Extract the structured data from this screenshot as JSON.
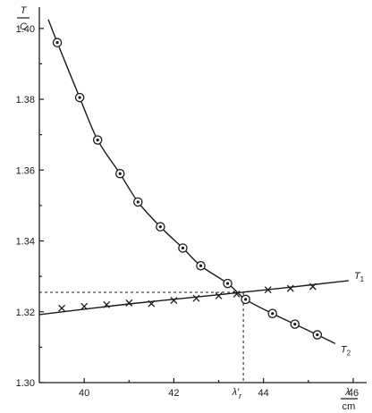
{
  "chart_data": {
    "type": "line",
    "xlabel": "λ'",
    "xunit": "cm",
    "ylabel": "T",
    "yunit": "C",
    "xlim": [
      39,
      46.3
    ],
    "ylim": [
      1.3,
      1.405
    ],
    "xticks": [
      "40",
      "42",
      "44",
      "46"
    ],
    "yticks": [
      "1.30",
      "1.32",
      "1.34",
      "1.36",
      "1.38",
      "1.40"
    ],
    "series": [
      {
        "name": "T",
        "name_sub": "1",
        "marker": "x",
        "points": [
          [
            39.5,
            1.321
          ],
          [
            40.0,
            1.3215
          ],
          [
            40.5,
            1.322
          ],
          [
            41.0,
            1.3225
          ],
          [
            41.5,
            1.3223
          ],
          [
            42.0,
            1.3232
          ],
          [
            42.5,
            1.3238
          ],
          [
            43.0,
            1.3245
          ],
          [
            43.4,
            1.325
          ],
          [
            44.1,
            1.3262
          ],
          [
            44.6,
            1.3266
          ],
          [
            45.1,
            1.3271
          ]
        ],
        "curve": [
          [
            39.0,
            1.3192
          ],
          [
            41.0,
            1.3222
          ],
          [
            43.0,
            1.3248
          ],
          [
            44.5,
            1.3268
          ],
          [
            45.9,
            1.3288
          ]
        ]
      },
      {
        "name": "T",
        "name_sub": "2",
        "marker": "circle-dot",
        "points": [
          [
            39.4,
            1.396
          ],
          [
            39.9,
            1.3805
          ],
          [
            40.3,
            1.3685
          ],
          [
            40.8,
            1.359
          ],
          [
            41.2,
            1.351
          ],
          [
            41.7,
            1.344
          ],
          [
            42.2,
            1.338
          ],
          [
            42.6,
            1.333
          ],
          [
            43.2,
            1.328
          ],
          [
            43.6,
            1.3235
          ],
          [
            44.2,
            1.3195
          ],
          [
            44.7,
            1.3165
          ],
          [
            45.2,
            1.3135
          ]
        ],
        "curve": [
          [
            39.2,
            1.4025
          ],
          [
            39.4,
            1.396
          ],
          [
            39.9,
            1.3805
          ],
          [
            40.3,
            1.3685
          ],
          [
            40.8,
            1.359
          ],
          [
            41.2,
            1.351
          ],
          [
            41.7,
            1.344
          ],
          [
            42.2,
            1.338
          ],
          [
            42.6,
            1.333
          ],
          [
            43.2,
            1.328
          ],
          [
            43.6,
            1.3235
          ],
          [
            44.2,
            1.3195
          ],
          [
            44.7,
            1.3165
          ],
          [
            45.2,
            1.3135
          ],
          [
            45.6,
            1.311
          ]
        ]
      }
    ],
    "intersection": {
      "label": "λ'",
      "label_sub": "r",
      "x": 43.55,
      "y": 1.3255
    }
  }
}
